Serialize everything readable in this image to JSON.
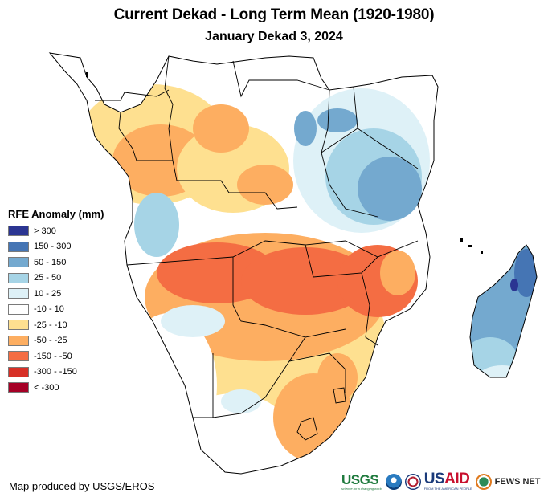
{
  "header": {
    "title": "Current Dekad - Long Term Mean (1920-1980)",
    "subtitle": "January Dekad 3, 2024"
  },
  "legend": {
    "title": "RFE Anomaly (mm)",
    "items": [
      {
        "label": "> 300",
        "color": "#2b3592"
      },
      {
        "label": "150 - 300",
        "color": "#4575b4"
      },
      {
        "label": "50 - 150",
        "color": "#74a9cf"
      },
      {
        "label": "25 - 50",
        "color": "#a6d4e6"
      },
      {
        "label": "10 - 25",
        "color": "#def1f7"
      },
      {
        "label": "-10 - 10",
        "color": "#ffffff"
      },
      {
        "label": "-25 - -10",
        "color": "#fee090"
      },
      {
        "label": "-50 - -25",
        "color": "#fdae61"
      },
      {
        "label": "-150 - -50",
        "color": "#f46d43"
      },
      {
        "label": "-300 - -150",
        "color": "#d73027"
      },
      {
        "label": "< -300",
        "color": "#a50026"
      }
    ]
  },
  "footer": {
    "credit": "Map produced by USGS/EROS",
    "logos": {
      "usgs": "USGS",
      "usgs_tagline": "science for a changing world",
      "usaid_us": "US",
      "usaid_aid": "AID",
      "usaid_tagline": "FROM THE AMERICAN PEOPLE",
      "fews": "FEWS NET"
    }
  },
  "map": {
    "region": "Southern and Central Africa with Madagascar",
    "zones": [
      {
        "name": "west-central-coast",
        "class": "-50 - -25"
      },
      {
        "name": "congo-basin-north",
        "class": "-10 - 10"
      },
      {
        "name": "east-africa-highlands",
        "class": "50 - 150"
      },
      {
        "name": "tanzania",
        "class": "50 - 150"
      },
      {
        "name": "angola-zambia-zimbabwe-mozambique",
        "class": "-150 - -50"
      },
      {
        "name": "namibia-west",
        "class": "-10 - 10"
      },
      {
        "name": "botswana-south-africa",
        "class": "-25 - -10"
      },
      {
        "name": "south-africa-east",
        "class": "-50 - -25"
      },
      {
        "name": "madagascar",
        "class": "50 - 150"
      },
      {
        "name": "madagascar-south",
        "class": "10 - 25"
      }
    ]
  }
}
